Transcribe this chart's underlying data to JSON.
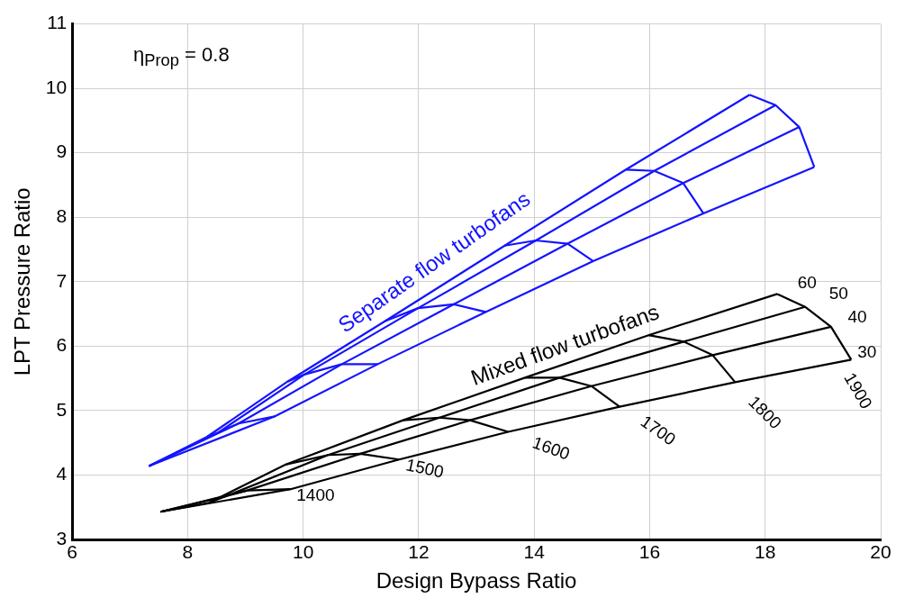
{
  "chart_data": {
    "type": "line",
    "xlabel": "Design Bypass Ratio",
    "ylabel": "LPT Pressure Ratio",
    "xlim": [
      6,
      20
    ],
    "ylim": [
      3,
      11
    ],
    "xticks": [
      6,
      8,
      10,
      12,
      14,
      16,
      18,
      20
    ],
    "yticks": [
      3,
      4,
      5,
      6,
      7,
      8,
      9,
      10,
      11
    ],
    "grid": true,
    "legend": false,
    "marker": "none",
    "line_style": "solid",
    "series": [
      {
        "color": "#1414ff",
        "x": [
          7.33,
          8.33,
          9.73,
          11.42,
          13.49,
          15.59,
          17.73
        ],
        "values": [
          4.14,
          4.59,
          5.45,
          6.39,
          7.56,
          8.74,
          9.9
        ]
      },
      {
        "color": "#1414ff",
        "x": [
          7.33,
          8.53,
          10.02,
          11.99,
          14.03,
          16.08,
          18.18
        ],
        "values": [
          4.14,
          4.66,
          5.56,
          6.59,
          7.64,
          8.72,
          9.74
        ]
      },
      {
        "color": "#1414ff",
        "x": [
          7.33,
          8.88,
          10.67,
          12.61,
          14.58,
          16.58,
          18.59
        ],
        "values": [
          4.14,
          4.8,
          5.72,
          6.65,
          7.59,
          8.53,
          9.4
        ]
      },
      {
        "color": "#1414ff",
        "x": [
          7.33,
          9.51,
          11.29,
          13.16,
          15.02,
          16.93,
          18.85
        ],
        "values": [
          4.14,
          4.91,
          5.72,
          6.53,
          7.32,
          8.06,
          8.78
        ]
      },
      {
        "color": "#1414ff",
        "x": [
          8.33,
          8.53,
          8.88,
          9.51
        ],
        "values": [
          4.59,
          4.66,
          4.8,
          4.91
        ]
      },
      {
        "color": "#1414ff",
        "x": [
          9.73,
          10.02,
          10.67,
          11.29
        ],
        "values": [
          5.45,
          5.56,
          5.72,
          5.72
        ]
      },
      {
        "color": "#1414ff",
        "x": [
          11.42,
          11.99,
          12.61,
          13.16
        ],
        "values": [
          6.39,
          6.59,
          6.65,
          6.53
        ]
      },
      {
        "color": "#1414ff",
        "x": [
          13.49,
          14.03,
          14.58,
          15.02
        ],
        "values": [
          7.56,
          7.64,
          7.59,
          7.32
        ]
      },
      {
        "color": "#1414ff",
        "x": [
          15.59,
          16.08,
          16.58,
          16.93
        ],
        "values": [
          8.74,
          8.72,
          8.53,
          8.06
        ]
      },
      {
        "color": "#1414ff",
        "x": [
          17.73,
          18.18,
          18.59,
          18.85
        ],
        "values": [
          9.9,
          9.74,
          9.4,
          8.78
        ]
      },
      {
        "color": "#000000",
        "x": [
          7.53,
          8.37,
          9.69,
          11.73,
          13.84,
          15.98,
          18.21
        ],
        "values": [
          3.43,
          3.57,
          4.16,
          4.85,
          5.51,
          6.17,
          6.81
        ]
      },
      {
        "color": "#000000",
        "x": [
          7.53,
          8.66,
          10.43,
          12.36,
          14.44,
          16.59,
          18.69
        ],
        "values": [
          3.43,
          3.67,
          4.31,
          4.89,
          5.51,
          6.07,
          6.61
        ]
      },
      {
        "color": "#000000",
        "x": [
          7.53,
          9.03,
          10.99,
          12.89,
          14.99,
          17.09,
          19.14
        ],
        "values": [
          3.43,
          3.76,
          4.33,
          4.85,
          5.38,
          5.86,
          6.3
        ]
      },
      {
        "color": "#000000",
        "x": [
          7.53,
          9.78,
          11.66,
          13.55,
          15.48,
          17.48,
          19.49
        ],
        "values": [
          3.43,
          3.78,
          4.24,
          4.67,
          5.06,
          5.44,
          5.79
        ]
      },
      {
        "color": "#000000",
        "x": [
          8.37,
          8.66,
          9.03,
          9.78
        ],
        "values": [
          3.57,
          3.67,
          3.76,
          3.78
        ]
      },
      {
        "color": "#000000",
        "x": [
          9.69,
          10.43,
          10.99,
          11.66
        ],
        "values": [
          4.16,
          4.31,
          4.33,
          4.24
        ]
      },
      {
        "color": "#000000",
        "x": [
          11.73,
          12.36,
          12.89,
          13.55
        ],
        "values": [
          4.85,
          4.89,
          4.85,
          4.67
        ]
      },
      {
        "color": "#000000",
        "x": [
          13.84,
          14.44,
          14.99,
          15.48
        ],
        "values": [
          5.51,
          5.51,
          5.38,
          5.06
        ]
      },
      {
        "color": "#000000",
        "x": [
          15.98,
          16.59,
          17.09,
          17.48
        ],
        "values": [
          6.17,
          6.07,
          5.86,
          5.44
        ]
      },
      {
        "color": "#000000",
        "x": [
          18.21,
          18.69,
          19.14,
          19.49
        ],
        "values": [
          6.81,
          6.61,
          6.3,
          5.79
        ]
      }
    ],
    "annotations": [
      "η$_{Prop}$ = 0.8",
      "Separate flow turbofans",
      "Mixed flow turbofans",
      "60",
      "50",
      "40",
      "30",
      "1400",
      "1500",
      "1600",
      "1700",
      "1800",
      "1900"
    ]
  }
}
